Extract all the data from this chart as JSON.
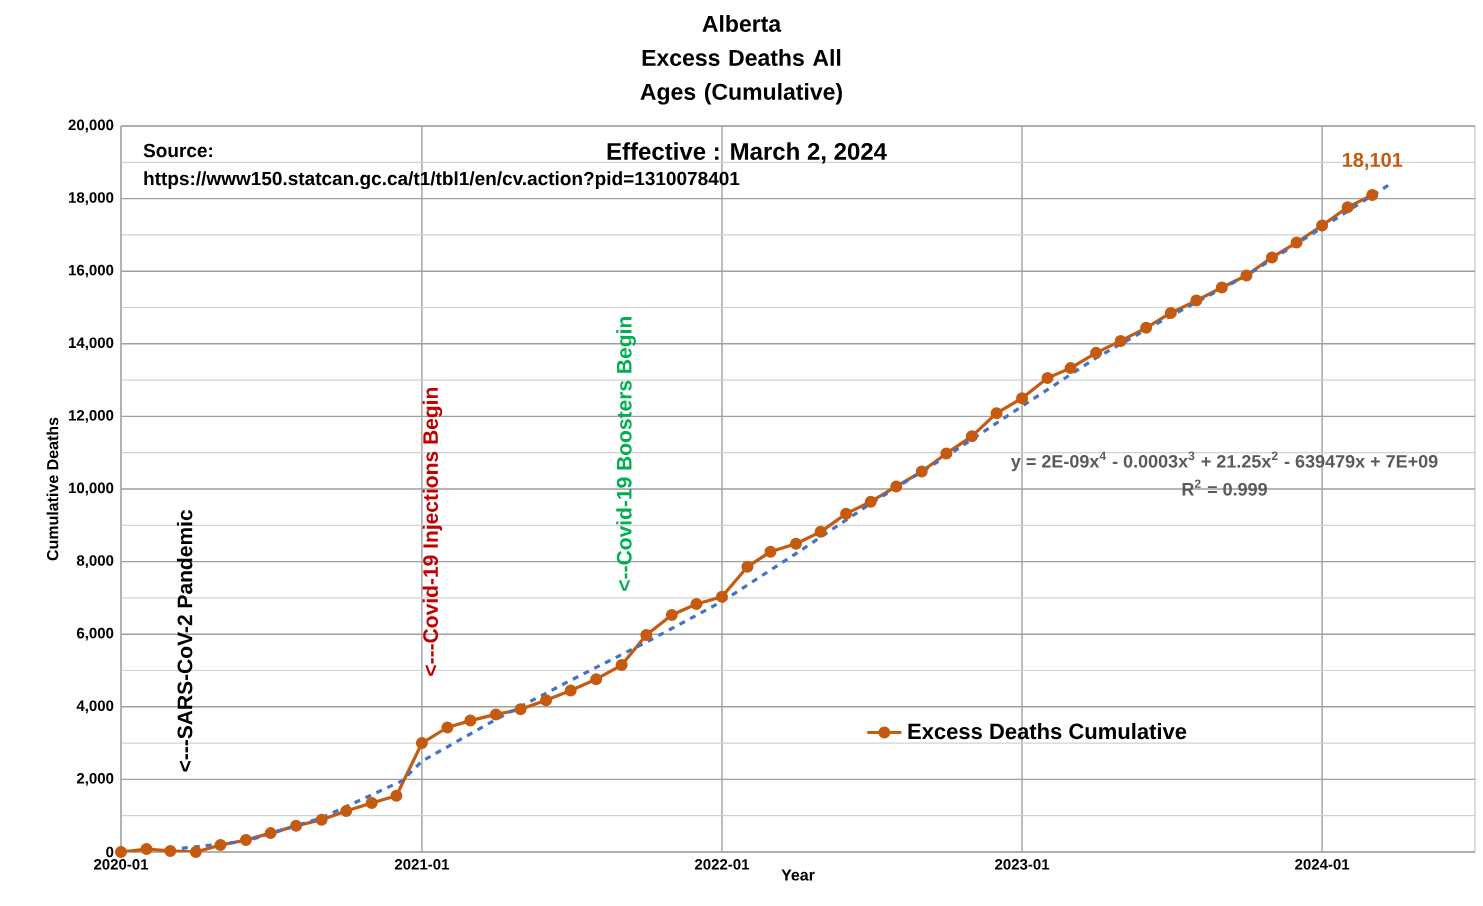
{
  "chart_data": {
    "type": "line",
    "title": "Alberta",
    "subtitle": "Excess Deaths All Ages (Cumulative)",
    "xlabel": "Year",
    "ylabel": "Cumulative Deaths",
    "x": [
      "2020-01-01",
      "2020-02-01",
      "2020-03-01",
      "2020-04-01",
      "2020-05-01",
      "2020-06-01",
      "2020-07-01",
      "2020-08-01",
      "2020-09-01",
      "2020-10-01",
      "2020-11-01",
      "2020-12-01",
      "2021-01-01",
      "2021-02-01",
      "2021-03-01",
      "2021-04-01",
      "2021-05-01",
      "2021-06-01",
      "2021-07-01",
      "2021-08-01",
      "2021-09-01",
      "2021-10-01",
      "2021-11-01",
      "2021-12-01",
      "2022-01-01",
      "2022-02-01",
      "2022-03-01",
      "2022-04-01",
      "2022-05-01",
      "2022-06-01",
      "2022-07-01",
      "2022-08-01",
      "2022-09-01",
      "2022-10-01",
      "2022-11-01",
      "2022-12-01",
      "2023-01-01",
      "2023-02-01",
      "2023-03-01",
      "2023-04-01",
      "2023-05-01",
      "2023-06-01",
      "2023-07-01",
      "2023-08-01",
      "2023-09-01",
      "2023-10-01",
      "2023-11-01",
      "2023-12-01",
      "2024-01-01",
      "2024-02-01",
      "2024-03-02"
    ],
    "series": [
      {
        "name": "Excess Deaths Cumulative",
        "color": "#c55a11",
        "marker": "circle",
        "line_style": "solid",
        "values": [
          0,
          80,
          30,
          0,
          190,
          330,
          520,
          720,
          890,
          1130,
          1350,
          1550,
          3000,
          3430,
          3620,
          3790,
          3930,
          4180,
          4450,
          4760,
          5150,
          5980,
          6530,
          6830,
          7030,
          7860,
          8270,
          8490,
          8820,
          9320,
          9650,
          10070,
          10480,
          10980,
          11450,
          12090,
          12500,
          13060,
          13330,
          13750,
          14080,
          14440,
          14850,
          15190,
          15550,
          15880,
          16380,
          16790,
          17260,
          17760,
          18101
        ],
        "value_labels": [
          null,
          null,
          null,
          null,
          null,
          null,
          null,
          null,
          null,
          null,
          null,
          null,
          null,
          null,
          null,
          null,
          null,
          null,
          null,
          null,
          null,
          null,
          null,
          null,
          null,
          null,
          null,
          null,
          null,
          null,
          null,
          null,
          null,
          null,
          null,
          null,
          null,
          null,
          null,
          null,
          null,
          null,
          null,
          null,
          null,
          null,
          null,
          null,
          null,
          null,
          "18,101"
        ]
      },
      {
        "color": "#4472c4",
        "marker": "none",
        "line_style": "dashed",
        "x": [
          "2020-03-15",
          "2020-06-01",
          "2020-09-01",
          "2020-12-08",
          "2021-01-01",
          "2021-04-01",
          "2021-07-01",
          "2021-10-01",
          "2022-01-01",
          "2022-04-01",
          "2022-07-01",
          "2022-10-01",
          "2023-01-01",
          "2023-04-01",
          "2023-07-01",
          "2023-10-01",
          "2024-01-01",
          "2024-03-25"
        ],
        "values": [
          100,
          300,
          940,
          1960,
          2500,
          3650,
          4730,
          5780,
          6900,
          8220,
          9600,
          10900,
          12280,
          13610,
          14770,
          15880,
          17200,
          18420
        ]
      }
    ],
    "xlim": [
      "2020-01-01",
      "2024-07-05"
    ],
    "xticks": [
      "2020-01",
      "2021-01",
      "2022-01",
      "2023-01",
      "2024-01"
    ],
    "ylim": [
      0,
      20000
    ],
    "yticks": [
      0,
      {
        "value": 2000,
        "label": "2,000"
      },
      {
        "value": 4000,
        "label": "4,000"
      },
      {
        "value": 6000,
        "label": "6,000"
      },
      {
        "value": 8000,
        "label": "8,000"
      },
      {
        "value": 10000,
        "label": "10,000"
      },
      {
        "value": 12000,
        "label": "12,000"
      },
      {
        "value": 14000,
        "label": "14,000"
      },
      {
        "value": 16000,
        "label": "16,000"
      },
      {
        "value": 18000,
        "label": "18,000"
      },
      {
        "value": 20000,
        "label": "20,000"
      }
    ],
    "grid": true,
    "legend": "bottom right",
    "annotations": [
      "Source: https://www150.statcan.gc.ca/t1/tbl1/en/cv.action?pid=1310078401",
      "Effective : March 2, 2024",
      "<---SARS-CoV-2 Pandemic",
      "<---Covid-19 Injections Begin",
      "<--Covid-19 Boosters Begin",
      "y = 2E-09x$^{4}$ - 0.0003x$^{3}$ + 21.25x$^{2}$ - 639479x + 7E+09",
      "R$^{2}$ = 0.999"
    ]
  }
}
